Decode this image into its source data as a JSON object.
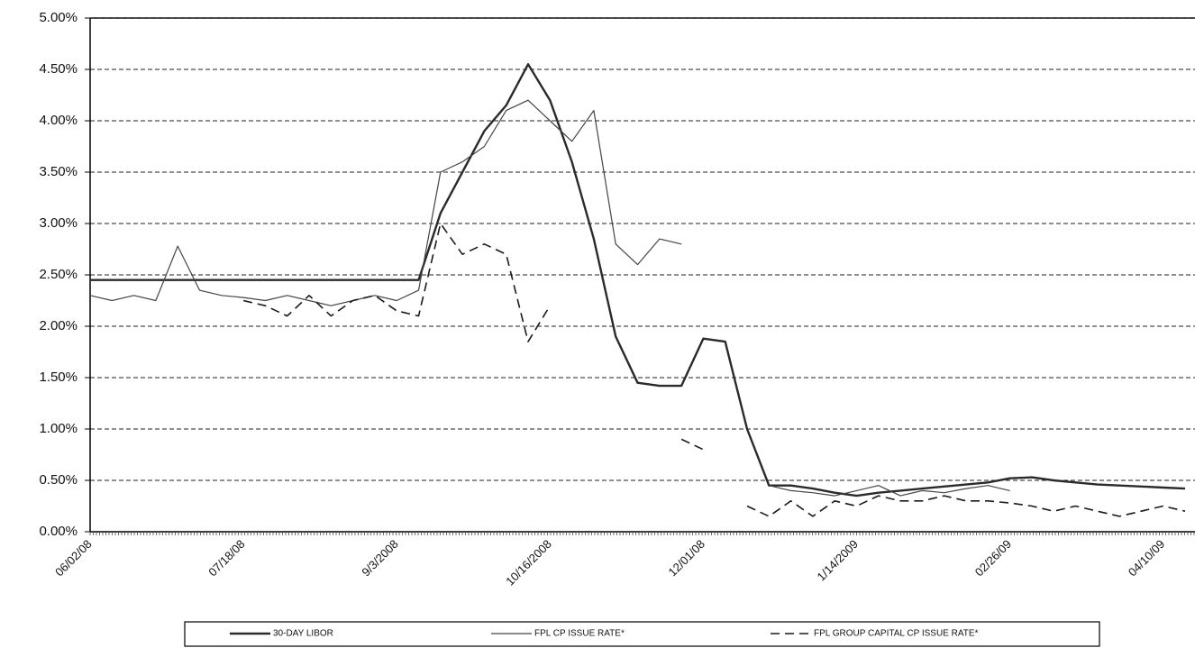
{
  "chart_data": {
    "type": "line",
    "categories": [
      "06/02/08",
      null,
      null,
      null,
      null,
      null,
      null,
      "07/18/08",
      null,
      null,
      null,
      null,
      null,
      null,
      "9/3/2008",
      null,
      null,
      null,
      null,
      null,
      null,
      "10/16/2008",
      null,
      null,
      null,
      null,
      null,
      null,
      "12/01/08",
      null,
      null,
      null,
      null,
      null,
      null,
      "1/14/2009",
      null,
      null,
      null,
      null,
      null,
      null,
      "02/26/09",
      null,
      null,
      null,
      null,
      null,
      null,
      "04/10/09",
      null
    ],
    "series": [
      {
        "name": "30-DAY LIBOR",
        "color": "#2a2a2a",
        "line_style": "thick",
        "values": [
          2.45,
          2.45,
          2.45,
          2.45,
          2.45,
          2.45,
          2.45,
          2.45,
          2.45,
          2.45,
          2.45,
          2.45,
          2.45,
          2.45,
          2.45,
          2.45,
          3.1,
          3.5,
          3.9,
          4.15,
          4.55,
          4.2,
          3.6,
          2.85,
          1.9,
          1.45,
          1.42,
          1.42,
          1.88,
          1.85,
          1.0,
          0.45,
          0.45,
          0.42,
          0.38,
          0.35,
          0.38,
          0.4,
          0.42,
          0.44,
          0.46,
          0.48,
          0.52,
          0.53,
          0.5,
          0.48,
          0.46,
          0.45,
          0.44,
          0.43,
          0.42
        ]
      },
      {
        "name": "FPL CP ISSUE RATE*",
        "color": "#444444",
        "line_style": "thin",
        "values": [
          2.3,
          2.25,
          2.3,
          2.25,
          2.78,
          2.35,
          2.3,
          2.28,
          2.25,
          2.3,
          2.25,
          2.2,
          2.25,
          2.3,
          2.25,
          2.35,
          3.5,
          3.6,
          3.75,
          4.1,
          4.2,
          4.0,
          3.8,
          4.1,
          2.8,
          2.6,
          2.85,
          2.8,
          null,
          null,
          null,
          0.45,
          0.4,
          0.38,
          0.35,
          0.4,
          0.45,
          0.35,
          0.4,
          0.38,
          0.42,
          0.45,
          0.4,
          null,
          null,
          null,
          null,
          null,
          null,
          null,
          null
        ]
      },
      {
        "name": "FPL GROUP CAPITAL CP ISSUE RATE*",
        "color": "#1a1a1a",
        "line_style": "dashed",
        "values": [
          null,
          null,
          null,
          null,
          null,
          null,
          null,
          2.25,
          2.2,
          2.1,
          2.3,
          2.1,
          2.25,
          2.3,
          2.15,
          2.1,
          3.0,
          2.7,
          2.8,
          2.7,
          1.85,
          2.2,
          null,
          null,
          null,
          null,
          null,
          0.9,
          0.8,
          null,
          0.25,
          0.15,
          0.3,
          0.15,
          0.3,
          0.25,
          0.35,
          0.3,
          0.3,
          0.35,
          0.3,
          0.3,
          0.28,
          0.25,
          0.2,
          0.25,
          0.2,
          0.15,
          0.2,
          0.25,
          0.2
        ]
      }
    ],
    "ylim": [
      0,
      5
    ],
    "yticks": [
      {
        "value": 0,
        "label": "0.00%"
      },
      {
        "value": 0.5,
        "label": "0.50%"
      },
      {
        "value": 1,
        "label": "1.00%"
      },
      {
        "value": 1.5,
        "label": "1.50%"
      },
      {
        "value": 2,
        "label": "2.00%"
      },
      {
        "value": 2.5,
        "label": "2.50%"
      },
      {
        "value": 3,
        "label": "3.00%"
      },
      {
        "value": 3.5,
        "label": "3.50%"
      },
      {
        "value": 4,
        "label": "4.00%"
      },
      {
        "value": 4.5,
        "label": "4.50%"
      },
      {
        "value": 5,
        "label": "5.00%"
      }
    ],
    "grid": true,
    "legend": "bottom"
  }
}
